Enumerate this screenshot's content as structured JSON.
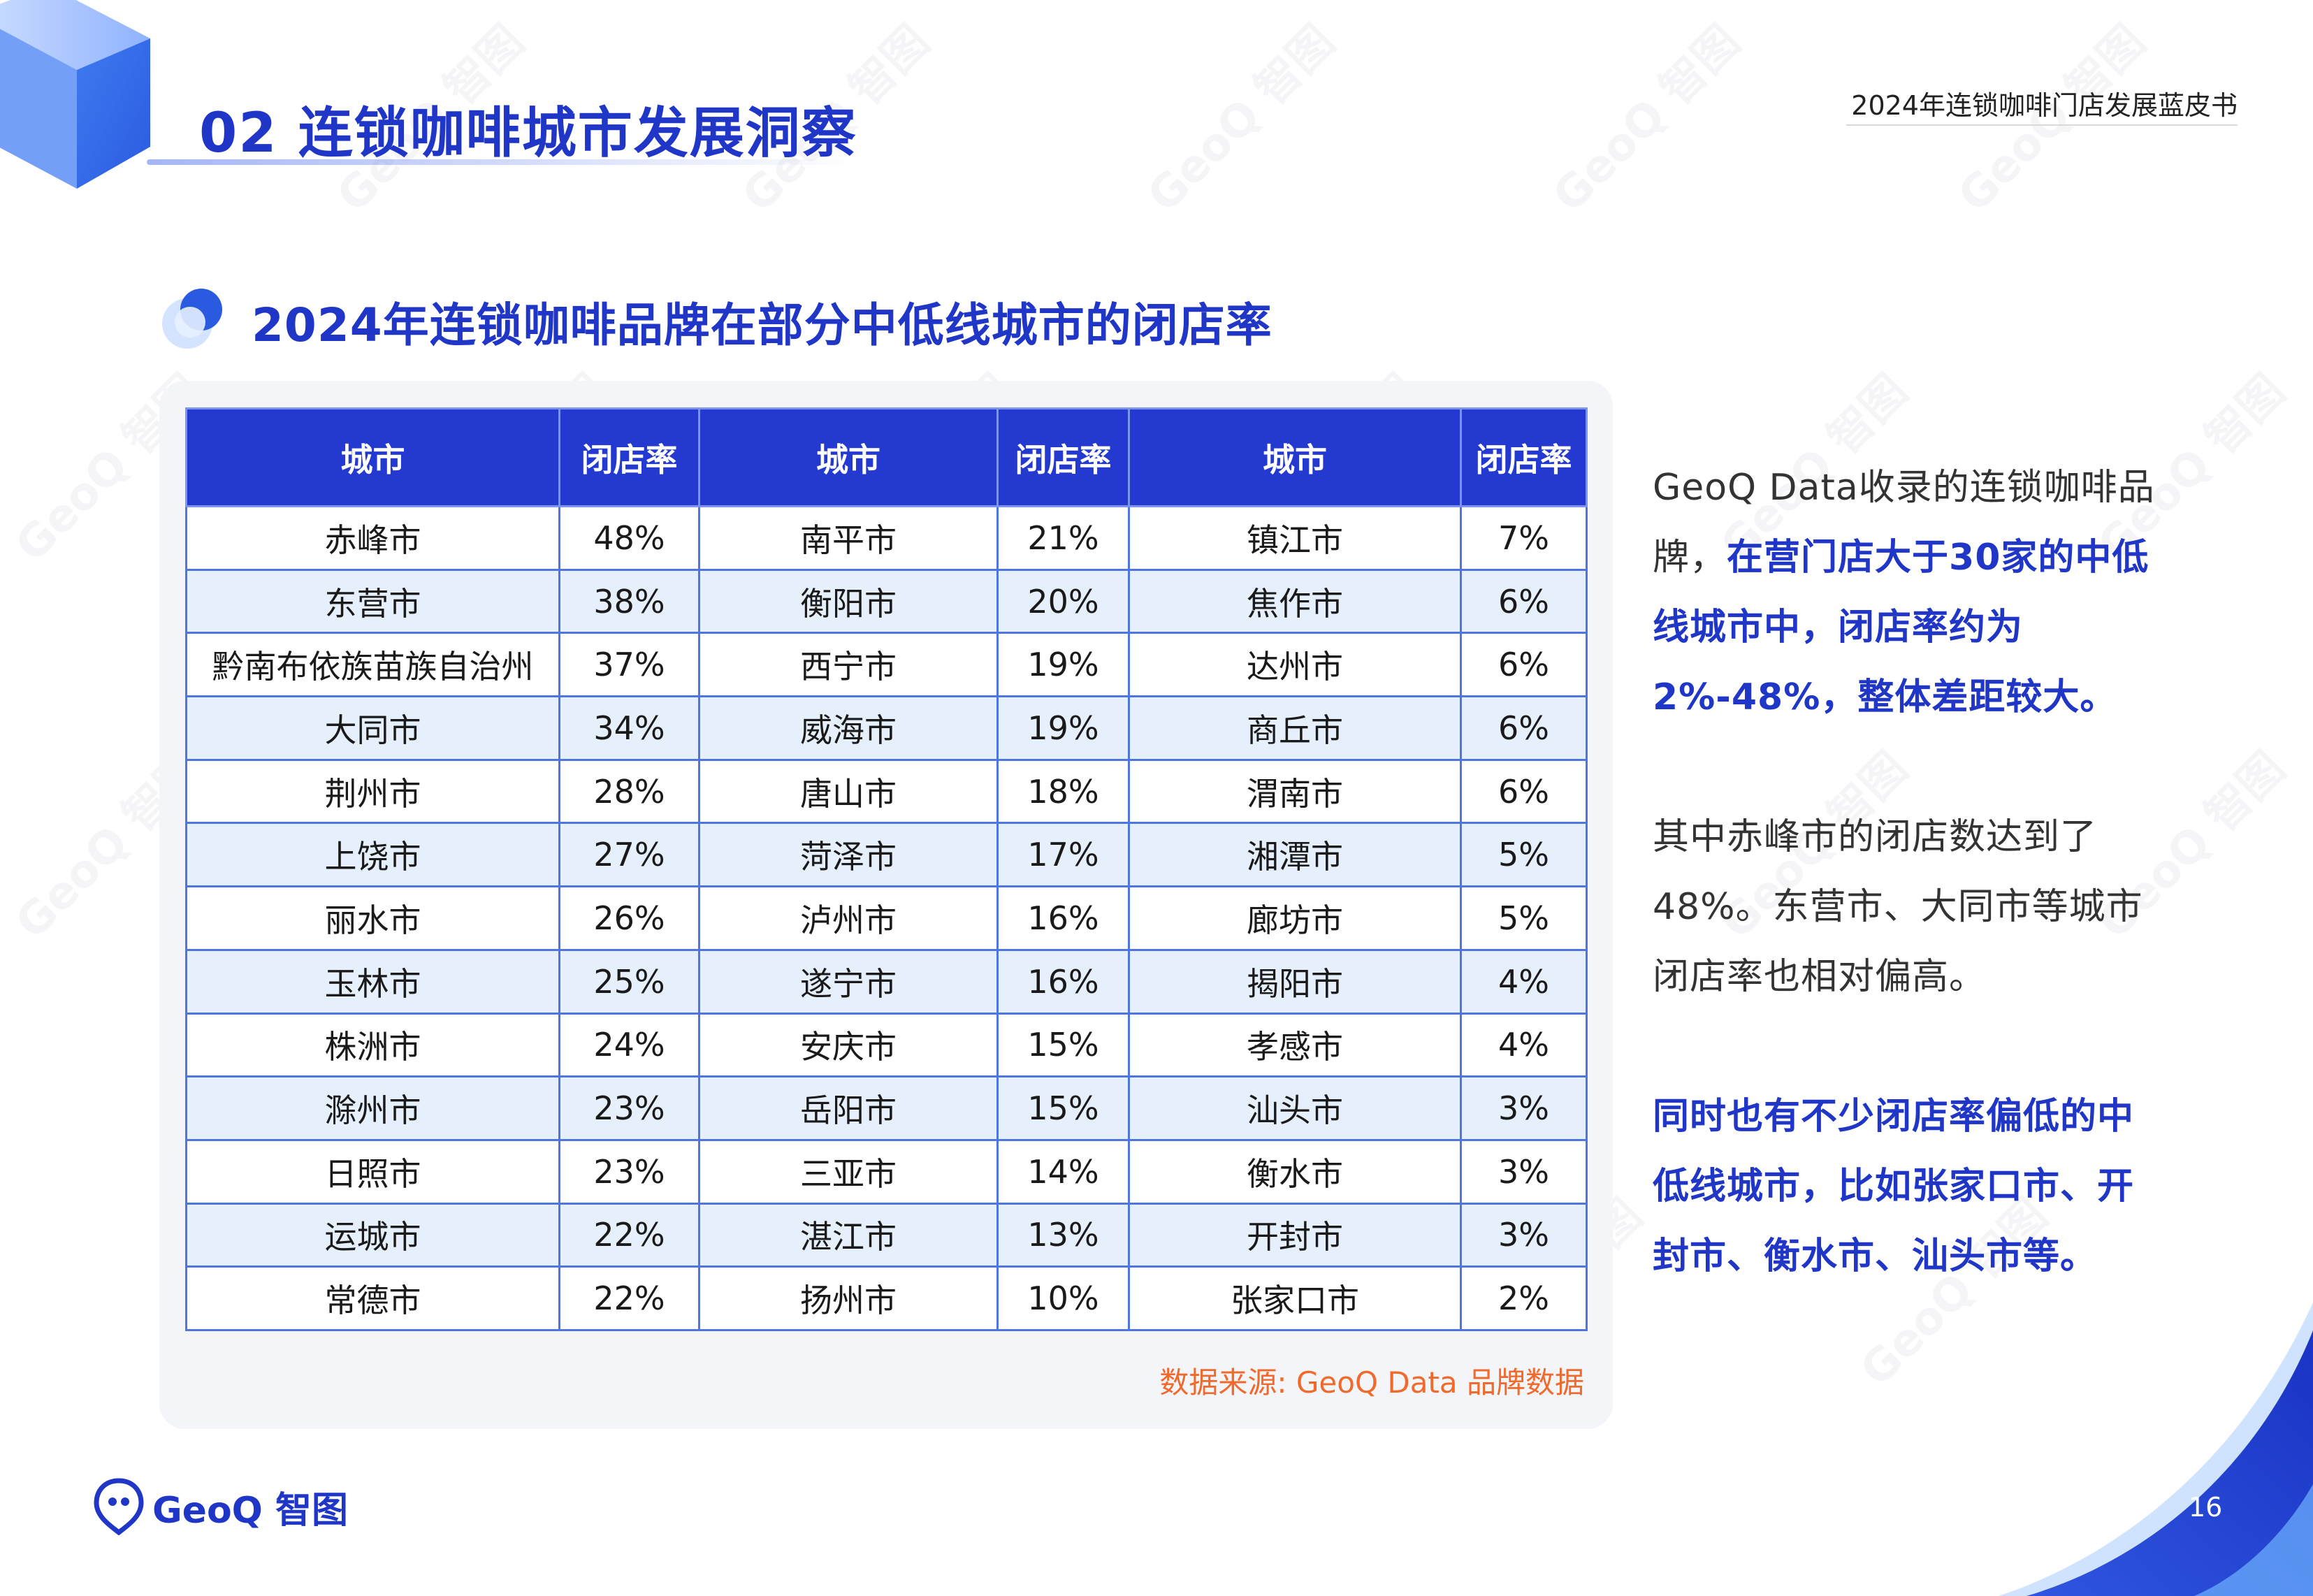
{
  "header": {
    "section_title": "02 连锁咖啡城市发展洞察",
    "report_title": "2024年连锁咖啡门店发展蓝皮书"
  },
  "subtitle": "2024年连锁咖啡品牌在部分中低线城市的闭店率",
  "table": {
    "headers": [
      "城市",
      "闭店率",
      "城市",
      "闭店率",
      "城市",
      "闭店率"
    ],
    "rows": [
      [
        "赤峰市",
        "48%",
        "南平市",
        "21%",
        "镇江市",
        "7%"
      ],
      [
        "东营市",
        "38%",
        "衡阳市",
        "20%",
        "焦作市",
        "6%"
      ],
      [
        "黔南布依族苗族自治州",
        "37%",
        "西宁市",
        "19%",
        "达州市",
        "6%"
      ],
      [
        "大同市",
        "34%",
        "威海市",
        "19%",
        "商丘市",
        "6%"
      ],
      [
        "荆州市",
        "28%",
        "唐山市",
        "18%",
        "渭南市",
        "6%"
      ],
      [
        "上饶市",
        "27%",
        "菏泽市",
        "17%",
        "湘潭市",
        "5%"
      ],
      [
        "丽水市",
        "26%",
        "泸州市",
        "16%",
        "廊坊市",
        "5%"
      ],
      [
        "玉林市",
        "25%",
        "遂宁市",
        "16%",
        "揭阳市",
        "4%"
      ],
      [
        "株洲市",
        "24%",
        "安庆市",
        "15%",
        "孝感市",
        "4%"
      ],
      [
        "滁州市",
        "23%",
        "岳阳市",
        "15%",
        "汕头市",
        "3%"
      ],
      [
        "日照市",
        "23%",
        "三亚市",
        "14%",
        "衡水市",
        "3%"
      ],
      [
        "运城市",
        "22%",
        "湛江市",
        "13%",
        "开封市",
        "3%"
      ],
      [
        "常德市",
        "22%",
        "扬州市",
        "10%",
        "张家口市",
        "2%"
      ]
    ]
  },
  "source": "数据来源: GeoQ Data 品牌数据",
  "side": {
    "p1_normal": "GeoQ Data收录的连锁咖啡品牌，",
    "p1_highlight": "在营门店大于30家的中低线城市中，闭店率约为2%-48%，整体差距较大。",
    "p2": "其中赤峰市的闭店数达到了48%。东营市、大同市等城市闭店率也相对偏高。",
    "p3": "同时也有不少闭店率偏低的中低线城市，比如张家口市、开封市、衡水市、汕头市等。"
  },
  "footer": {
    "logo_text": "GeoQ 智图",
    "page_number": "16"
  },
  "watermark": "GeoQ 智图",
  "colors": {
    "brand_blue": "#1f36c7",
    "header_blue": "#2339d0",
    "row_alt": "#e6f0fd",
    "source_orange": "#ef6a2c"
  }
}
